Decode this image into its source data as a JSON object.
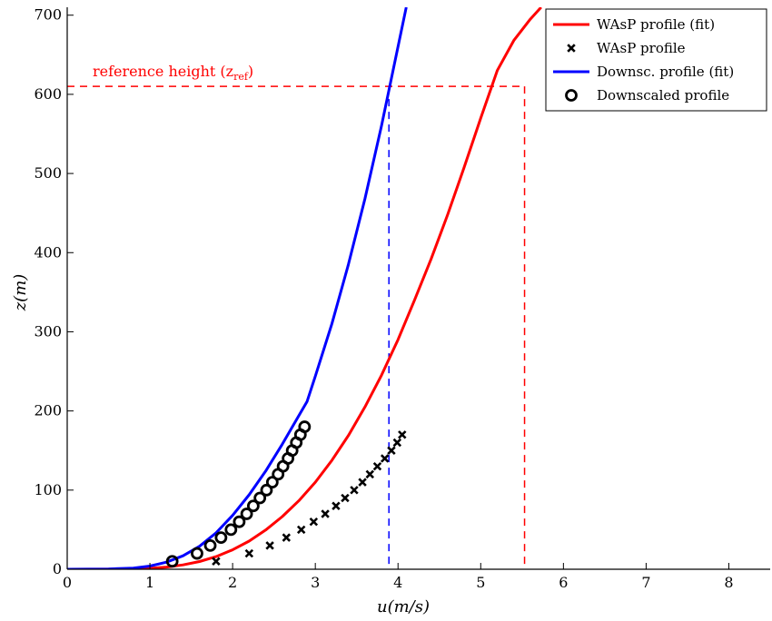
{
  "chart_data": {
    "type": "line",
    "title": "",
    "xlabel": "u(m/s)",
    "ylabel": "z(m)",
    "xlim": [
      0,
      8.5
    ],
    "ylim": [
      0,
      710
    ],
    "x_ticks": [
      0,
      1,
      2,
      3,
      4,
      5,
      6,
      7,
      8
    ],
    "y_ticks": [
      0,
      100,
      200,
      300,
      400,
      500,
      600,
      700
    ],
    "grid": false,
    "legend_position": "top-right",
    "reference_height": 610,
    "reference_label": "reference height (z",
    "reference_label_sub": "ref",
    "reference_label_end": ")",
    "reference_color": "#ff0000",
    "vline_wasp_u": 5.53,
    "vline_downsc_u": 3.89,
    "series": [
      {
        "name": "WAsP profile (fit)",
        "kind": "fit-curve",
        "color": "#ff0000",
        "x": [
          0.0,
          0.5,
          0.8,
          1.0,
          1.2,
          1.4,
          1.6,
          1.8,
          2.0,
          2.2,
          2.4,
          2.6,
          2.8,
          3.0,
          3.2,
          3.4,
          3.6,
          3.8,
          4.0,
          4.2,
          4.4,
          4.6,
          4.8,
          5.0,
          5.2,
          5.4,
          5.6,
          5.73
        ],
        "y": [
          0.0,
          0.1,
          0.5,
          1.2,
          2.8,
          5.5,
          9.8,
          16.0,
          24.5,
          35.5,
          49.5,
          66.5,
          86.5,
          110.0,
          137.5,
          169.0,
          205.0,
          245.0,
          290.0,
          340.0,
          392.0,
          448.0,
          508.0,
          570.0,
          630.0,
          668.0,
          695.0,
          710.0
        ]
      },
      {
        "name": "WAsP profile",
        "kind": "markers-x",
        "color": "#000000",
        "x": [
          1.8,
          2.2,
          2.45,
          2.65,
          2.83,
          2.98,
          3.12,
          3.25,
          3.36,
          3.47,
          3.57,
          3.66,
          3.75,
          3.84,
          3.92,
          3.99,
          4.05
        ],
        "y": [
          10,
          20,
          30,
          40,
          50,
          60,
          70,
          80,
          90,
          100,
          110,
          120,
          130,
          140,
          150,
          160,
          170
        ]
      },
      {
        "name": "Downsc. profile (fit)",
        "kind": "fit-curve",
        "color": "#0000ff",
        "x": [
          0.0,
          0.5,
          0.8,
          1.0,
          1.2,
          1.4,
          1.6,
          1.8,
          2.0,
          2.2,
          2.4,
          2.6,
          2.8,
          2.9,
          3.0,
          3.2,
          3.4,
          3.6,
          3.8,
          4.0,
          4.1
        ],
        "y": [
          0.0,
          0.3,
          1.5,
          4.0,
          9.0,
          17.0,
          29.0,
          46.0,
          68.0,
          94.0,
          124.0,
          158.0,
          194.0,
          212.0,
          244.0,
          310.0,
          385.0,
          468.0,
          560.0,
          660.0,
          710.0
        ]
      },
      {
        "name": "Downscaled profile",
        "kind": "markers-o",
        "color": "#000000",
        "x": [
          1.27,
          1.57,
          1.73,
          1.86,
          1.98,
          2.08,
          2.17,
          2.25,
          2.33,
          2.41,
          2.48,
          2.55,
          2.61,
          2.67,
          2.72,
          2.77,
          2.82,
          2.87
        ],
        "y": [
          10,
          20,
          30,
          40,
          50,
          60,
          70,
          80,
          90,
          100,
          110,
          120,
          130,
          140,
          150,
          160,
          170,
          180
        ]
      }
    ]
  }
}
